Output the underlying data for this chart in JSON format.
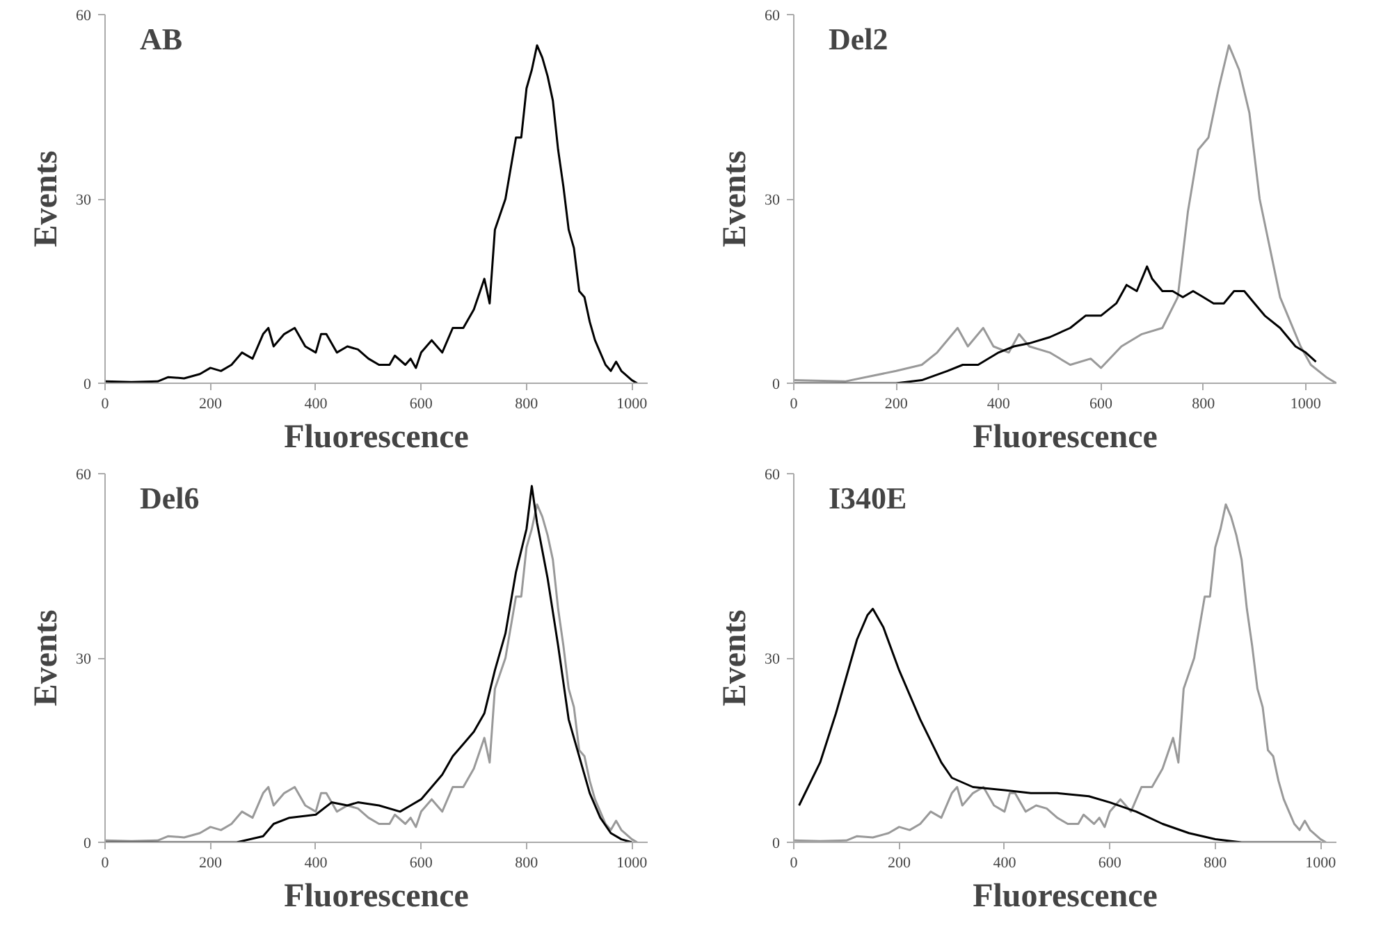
{
  "chart_data": [
    {
      "type": "line",
      "title": "AB",
      "xlabel": "Fluorescence",
      "ylabel": "Events",
      "xlim": [
        0,
        1030
      ],
      "ylim": [
        0,
        60
      ],
      "xticks": [
        0,
        200,
        400,
        600,
        800,
        1000
      ],
      "yticks": [
        0,
        30,
        60
      ],
      "grid": false,
      "series": [
        {
          "color": "#000000",
          "x": [
            0,
            50,
            100,
            120,
            150,
            180,
            200,
            220,
            240,
            260,
            280,
            300,
            310,
            320,
            340,
            360,
            380,
            400,
            410,
            420,
            440,
            460,
            480,
            500,
            520,
            540,
            550,
            570,
            580,
            590,
            600,
            620,
            640,
            660,
            680,
            700,
            720,
            730,
            740,
            760,
            780,
            790,
            800,
            810,
            820,
            830,
            840,
            850,
            860,
            870,
            880,
            890,
            900,
            910,
            920,
            930,
            940,
            950,
            960,
            970,
            980,
            1000,
            1010
          ],
          "values": [
            0.3,
            0.2,
            0.3,
            1,
            0.8,
            1.5,
            2.5,
            2,
            3,
            5,
            4,
            8,
            9,
            6,
            8,
            9,
            6,
            5,
            8,
            8,
            5,
            6,
            5.5,
            4,
            3,
            3,
            4.5,
            3,
            4,
            2.5,
            5,
            7,
            5,
            9,
            9,
            12,
            17,
            13,
            25,
            30,
            40,
            40,
            48,
            51,
            55,
            53,
            50,
            46,
            38,
            32,
            25,
            22,
            15,
            14,
            10,
            7,
            5,
            3,
            2,
            3.5,
            2,
            0.5,
            0
          ]
        }
      ]
    },
    {
      "type": "line",
      "title": "Del2",
      "xlabel": "Fluorescence",
      "ylabel": "Events",
      "xlim": [
        0,
        1060
      ],
      "ylim": [
        0,
        60
      ],
      "xticks": [
        0,
        200,
        400,
        600,
        800,
        1000
      ],
      "yticks": [
        0,
        30,
        60
      ],
      "grid": false,
      "series": [
        {
          "color": "#999999",
          "x": [
            0,
            100,
            200,
            250,
            280,
            320,
            340,
            370,
            390,
            420,
            440,
            460,
            500,
            540,
            580,
            600,
            640,
            680,
            720,
            750,
            770,
            790,
            810,
            830,
            850,
            870,
            890,
            910,
            930,
            950,
            970,
            990,
            1010,
            1040,
            1060
          ],
          "values": [
            0.5,
            0.3,
            2,
            3,
            5,
            9,
            6,
            9,
            6,
            5,
            8,
            6,
            5,
            3,
            4,
            2.5,
            6,
            8,
            9,
            14,
            28,
            38,
            40,
            48,
            55,
            51,
            44,
            30,
            22,
            14,
            10,
            6,
            3,
            1,
            0
          ]
        },
        {
          "color": "#000000",
          "x": [
            0,
            200,
            250,
            300,
            330,
            360,
            400,
            430,
            460,
            500,
            540,
            570,
            600,
            630,
            650,
            670,
            690,
            700,
            720,
            740,
            760,
            780,
            800,
            820,
            840,
            860,
            880,
            900,
            920,
            950,
            980,
            1000,
            1020
          ],
          "values": [
            0,
            0,
            0.5,
            2,
            3,
            3,
            5,
            6,
            6.5,
            7.5,
            9,
            11,
            11,
            13,
            16,
            15,
            19,
            17,
            15,
            15,
            14,
            15,
            14,
            13,
            13,
            15,
            15,
            13,
            11,
            9,
            6,
            5,
            3.5
          ]
        }
      ]
    },
    {
      "type": "line",
      "title": "Del6",
      "xlabel": "Fluorescence",
      "ylabel": "Events",
      "xlim": [
        0,
        1030
      ],
      "ylim": [
        0,
        60
      ],
      "xticks": [
        0,
        200,
        400,
        600,
        800,
        1000
      ],
      "yticks": [
        0,
        30,
        60
      ],
      "grid": false,
      "series": [
        {
          "color": "#999999",
          "x": [
            0,
            50,
            100,
            120,
            150,
            180,
            200,
            220,
            240,
            260,
            280,
            300,
            310,
            320,
            340,
            360,
            380,
            400,
            410,
            420,
            440,
            460,
            480,
            500,
            520,
            540,
            550,
            570,
            580,
            590,
            600,
            620,
            640,
            660,
            680,
            700,
            720,
            730,
            740,
            760,
            780,
            790,
            800,
            810,
            820,
            830,
            840,
            850,
            860,
            870,
            880,
            890,
            900,
            910,
            920,
            930,
            940,
            950,
            960,
            970,
            980,
            1000,
            1010
          ],
          "values": [
            0.3,
            0.2,
            0.3,
            1,
            0.8,
            1.5,
            2.5,
            2,
            3,
            5,
            4,
            8,
            9,
            6,
            8,
            9,
            6,
            5,
            8,
            8,
            5,
            6,
            5.5,
            4,
            3,
            3,
            4.5,
            3,
            4,
            2.5,
            5,
            7,
            5,
            9,
            9,
            12,
            17,
            13,
            25,
            30,
            40,
            40,
            48,
            51,
            55,
            53,
            50,
            46,
            38,
            32,
            25,
            22,
            15,
            14,
            10,
            7,
            5,
            3,
            2,
            3.5,
            2,
            0.5,
            0
          ]
        },
        {
          "color": "#000000",
          "x": [
            0,
            250,
            300,
            320,
            350,
            400,
            430,
            460,
            480,
            520,
            560,
            580,
            600,
            620,
            640,
            660,
            680,
            700,
            720,
            740,
            760,
            780,
            800,
            810,
            820,
            840,
            860,
            880,
            900,
            920,
            940,
            960,
            980,
            1000
          ],
          "values": [
            0,
            0,
            1,
            3,
            4,
            4.5,
            6.5,
            6,
            6.5,
            6,
            5,
            6,
            7,
            9,
            11,
            14,
            16,
            18,
            21,
            28,
            34,
            44,
            51,
            58,
            52,
            43,
            32,
            20,
            14,
            8,
            4,
            1.5,
            0.5,
            0
          ]
        }
      ]
    },
    {
      "type": "line",
      "title": "I340E",
      "xlabel": "Fluorescence",
      "ylabel": "Events",
      "xlim": [
        0,
        1030
      ],
      "ylim": [
        0,
        60
      ],
      "xticks": [
        0,
        200,
        400,
        600,
        800,
        1000
      ],
      "yticks": [
        0,
        30,
        60
      ],
      "grid": false,
      "series": [
        {
          "color": "#999999",
          "x": [
            0,
            50,
            100,
            120,
            150,
            180,
            200,
            220,
            240,
            260,
            280,
            300,
            310,
            320,
            340,
            360,
            380,
            400,
            410,
            420,
            440,
            460,
            480,
            500,
            520,
            540,
            550,
            570,
            580,
            590,
            600,
            620,
            640,
            660,
            680,
            700,
            720,
            730,
            740,
            760,
            780,
            790,
            800,
            810,
            820,
            830,
            840,
            850,
            860,
            870,
            880,
            890,
            900,
            910,
            920,
            930,
            940,
            950,
            960,
            970,
            980,
            1000,
            1010
          ],
          "values": [
            0.3,
            0.2,
            0.3,
            1,
            0.8,
            1.5,
            2.5,
            2,
            3,
            5,
            4,
            8,
            9,
            6,
            8,
            9,
            6,
            5,
            8,
            8,
            5,
            6,
            5.5,
            4,
            3,
            3,
            4.5,
            3,
            4,
            2.5,
            5,
            7,
            5,
            9,
            9,
            12,
            17,
            13,
            25,
            30,
            40,
            40,
            48,
            51,
            55,
            53,
            50,
            46,
            38,
            32,
            25,
            22,
            15,
            14,
            10,
            7,
            5,
            3,
            2,
            3.5,
            2,
            0.5,
            0
          ]
        },
        {
          "color": "#000000",
          "x": [
            10,
            50,
            80,
            100,
            120,
            140,
            150,
            170,
            200,
            240,
            280,
            300,
            340,
            400,
            450,
            500,
            560,
            600,
            650,
            700,
            750,
            800,
            850,
            1000
          ],
          "values": [
            6,
            13,
            21,
            27,
            33,
            37,
            38,
            35,
            28,
            20,
            13,
            10.5,
            9,
            8.5,
            8,
            8,
            7.5,
            6.5,
            5,
            3,
            1.5,
            0.5,
            0,
            0
          ]
        }
      ]
    }
  ]
}
